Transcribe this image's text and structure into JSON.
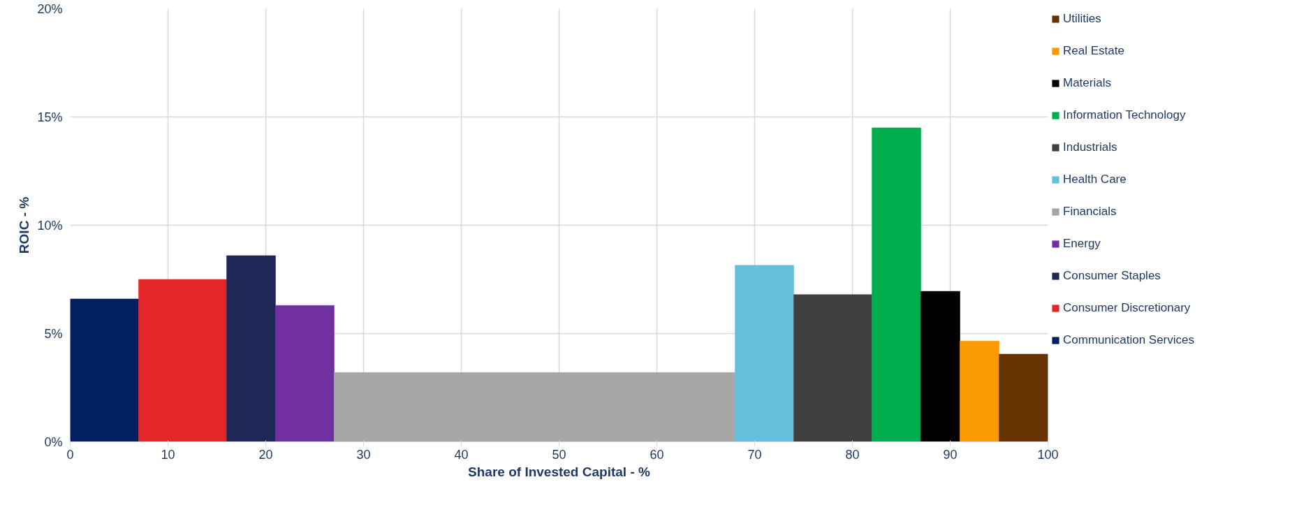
{
  "chart_data": {
    "type": "histogram",
    "xlabel": "Share of Invested Capital - %",
    "ylabel": "ROIC - %",
    "bins": [
      0,
      7,
      16,
      21,
      27,
      68,
      74,
      82,
      87,
      91,
      95,
      100
    ],
    "series": [
      {
        "name": "Communication Services",
        "color": "#002060",
        "values": [
          6.6,
          null,
          null,
          null,
          null,
          null,
          null,
          null,
          null,
          null,
          null
        ]
      },
      {
        "name": "Consumer Discretionary",
        "color": "#e32628",
        "values": [
          null,
          7.5,
          null,
          null,
          null,
          null,
          null,
          null,
          null,
          null,
          null
        ]
      },
      {
        "name": "Consumer Staples",
        "color": "#1f2757",
        "values": [
          null,
          null,
          8.6,
          null,
          null,
          null,
          null,
          null,
          null,
          null,
          null
        ]
      },
      {
        "name": "Energy",
        "color": "#7030a0",
        "values": [
          null,
          null,
          null,
          6.3,
          null,
          null,
          null,
          null,
          null,
          null,
          null
        ]
      },
      {
        "name": "Financials",
        "color": "#a6a6a6",
        "values": [
          null,
          null,
          null,
          null,
          3.2,
          null,
          null,
          null,
          null,
          null,
          null
        ]
      },
      {
        "name": "Health Care",
        "color": "#63bfdb",
        "values": [
          null,
          null,
          null,
          null,
          null,
          8.15,
          null,
          null,
          null,
          null,
          null
        ]
      },
      {
        "name": "Industrials",
        "color": "#404040",
        "values": [
          null,
          null,
          null,
          null,
          null,
          null,
          6.8,
          null,
          null,
          null,
          null
        ]
      },
      {
        "name": "Information Technology",
        "color": "#00ad4f",
        "values": [
          null,
          null,
          null,
          null,
          null,
          null,
          null,
          14.5,
          null,
          null,
          null
        ]
      },
      {
        "name": "Materials",
        "color": "#000000",
        "values": [
          null,
          null,
          null,
          null,
          null,
          null,
          null,
          null,
          6.95,
          null,
          null
        ]
      },
      {
        "name": "Real Estate",
        "color": "#fb9900",
        "values": [
          null,
          null,
          null,
          null,
          null,
          null,
          null,
          null,
          null,
          4.65,
          null
        ]
      },
      {
        "name": "Utilities",
        "color": "#653200",
        "values": [
          null,
          null,
          null,
          null,
          null,
          null,
          null,
          null,
          null,
          null,
          4.05
        ]
      }
    ],
    "xlim": [
      0,
      100
    ],
    "xticks": [
      0,
      10,
      20,
      30,
      40,
      50,
      60,
      70,
      80,
      90,
      100
    ],
    "ylim": [
      0,
      20
    ],
    "yticks": [
      {
        "value": 0,
        "label": "0%"
      },
      {
        "value": 5,
        "label": "5%"
      },
      {
        "value": 10,
        "label": "10%"
      },
      {
        "value": 15,
        "label": "15%"
      },
      {
        "value": 20,
        "label": "20%"
      }
    ],
    "grid": true,
    "legend": "right"
  }
}
